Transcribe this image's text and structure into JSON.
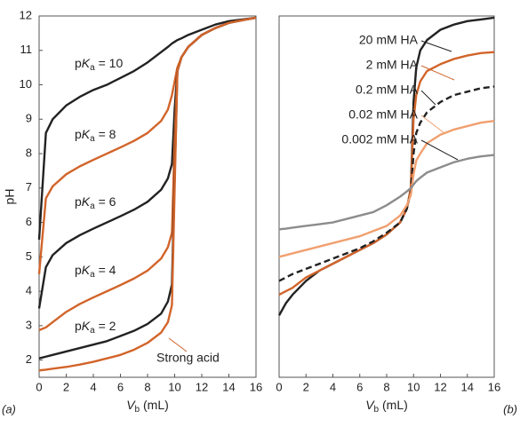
{
  "chart_data": [
    {
      "type": "line",
      "panel_label": "(a)",
      "x_label": "Vb (mL)",
      "y_label": "pH",
      "xlim": [
        0,
        16
      ],
      "ylim": [
        1.5,
        12
      ],
      "xticks": [
        0,
        2,
        4,
        6,
        8,
        10,
        12,
        14,
        16
      ],
      "yticks": [
        2,
        3,
        4,
        5,
        6,
        7,
        8,
        9,
        10,
        11,
        12
      ],
      "x": [
        0,
        0.5,
        1,
        2,
        3,
        4,
        5,
        6,
        7,
        8,
        9,
        9.5,
        9.8,
        10,
        10.2,
        10.5,
        11,
        12,
        13,
        14,
        15,
        16
      ],
      "series": [
        {
          "name": "pKa = 10",
          "color": "#222222",
          "values": [
            5.5,
            8.6,
            9.0,
            9.4,
            9.65,
            9.85,
            10.0,
            10.2,
            10.4,
            10.65,
            10.95,
            11.1,
            11.2,
            11.25,
            11.3,
            11.35,
            11.45,
            11.6,
            11.75,
            11.85,
            11.9,
            11.95
          ]
        },
        {
          "name": "pKa = 8",
          "color": "#d2642a",
          "values": [
            4.5,
            6.7,
            7.05,
            7.4,
            7.63,
            7.82,
            8.0,
            8.18,
            8.37,
            8.6,
            8.95,
            9.28,
            9.7,
            10.1,
            10.5,
            10.8,
            11.1,
            11.45,
            11.65,
            11.8,
            11.88,
            11.95
          ]
        },
        {
          "name": "pKa = 6",
          "color": "#222222",
          "values": [
            3.5,
            4.7,
            5.05,
            5.4,
            5.63,
            5.82,
            6.0,
            6.18,
            6.37,
            6.6,
            6.95,
            7.28,
            7.7,
            9.3,
            10.4,
            10.8,
            11.1,
            11.45,
            11.65,
            11.8,
            11.88,
            11.95
          ]
        },
        {
          "name": "pKa = 4",
          "color": "#d2642a",
          "values": [
            2.87,
            2.95,
            3.1,
            3.4,
            3.63,
            3.82,
            4.0,
            4.18,
            4.37,
            4.6,
            4.95,
            5.28,
            5.7,
            8.4,
            10.4,
            10.8,
            11.1,
            11.45,
            11.65,
            11.8,
            11.88,
            11.95
          ]
        },
        {
          "name": "pKa = 2",
          "color": "#222222",
          "values": [
            2.05,
            2.1,
            2.15,
            2.25,
            2.35,
            2.45,
            2.55,
            2.7,
            2.85,
            3.05,
            3.35,
            3.7,
            4.2,
            7.3,
            10.4,
            10.8,
            11.1,
            11.45,
            11.65,
            11.8,
            11.88,
            11.95
          ]
        },
        {
          "name": "Strong acid",
          "color": "#d2642a",
          "values": [
            1.7,
            1.72,
            1.75,
            1.8,
            1.87,
            1.95,
            2.05,
            2.15,
            2.3,
            2.5,
            2.8,
            3.1,
            3.6,
            7.0,
            10.4,
            10.8,
            11.1,
            11.45,
            11.65,
            11.8,
            11.88,
            11.95
          ]
        }
      ]
    },
    {
      "type": "line",
      "panel_label": "(b)",
      "x_label": "Vb (mL)",
      "xlim": [
        0,
        16
      ],
      "ylim": [
        1.5,
        12
      ],
      "xticks": [
        0,
        2,
        4,
        6,
        8,
        10,
        12,
        14,
        16
      ],
      "x": [
        0,
        0.5,
        1,
        2,
        3,
        4,
        5,
        6,
        7,
        8,
        9,
        9.5,
        9.8,
        10,
        10.2,
        10.5,
        11,
        12,
        13,
        14,
        15,
        16
      ],
      "series": [
        {
          "name": "20 mM HA",
          "color": "#222222",
          "values": [
            3.3,
            3.65,
            3.9,
            4.3,
            4.6,
            4.8,
            5.0,
            5.2,
            5.4,
            5.65,
            6.0,
            6.4,
            7.0,
            9.5,
            10.5,
            11.0,
            11.3,
            11.6,
            11.75,
            11.85,
            11.9,
            11.95
          ]
        },
        {
          "name": "2 mM HA",
          "color": "#d2642a",
          "values": [
            3.9,
            4.0,
            4.1,
            4.4,
            4.6,
            4.8,
            5.0,
            5.2,
            5.4,
            5.65,
            6.0,
            6.4,
            7.0,
            9.0,
            9.7,
            10.1,
            10.4,
            10.6,
            10.75,
            10.85,
            10.92,
            10.95
          ]
        },
        {
          "name": "0.2 mM HA",
          "color": "#222222",
          "dash": true,
          "values": [
            4.3,
            4.4,
            4.5,
            4.65,
            4.8,
            4.95,
            5.1,
            5.25,
            5.45,
            5.7,
            6.0,
            6.4,
            6.9,
            8.0,
            8.6,
            8.9,
            9.2,
            9.5,
            9.7,
            9.8,
            9.9,
            9.95
          ]
        },
        {
          "name": "0.02 mM HA",
          "color": "#f0a070",
          "values": [
            5.0,
            5.05,
            5.1,
            5.2,
            5.3,
            5.4,
            5.5,
            5.6,
            5.75,
            5.9,
            6.2,
            6.5,
            6.8,
            7.4,
            7.8,
            8.0,
            8.3,
            8.55,
            8.7,
            8.8,
            8.9,
            8.95
          ]
        },
        {
          "name": "0.002 mM HA",
          "color": "#8c8c8c",
          "values": [
            5.8,
            5.82,
            5.85,
            5.9,
            5.95,
            6.0,
            6.1,
            6.2,
            6.3,
            6.5,
            6.75,
            6.9,
            7.0,
            7.1,
            7.2,
            7.3,
            7.45,
            7.6,
            7.75,
            7.85,
            7.92,
            7.96
          ]
        }
      ]
    }
  ]
}
